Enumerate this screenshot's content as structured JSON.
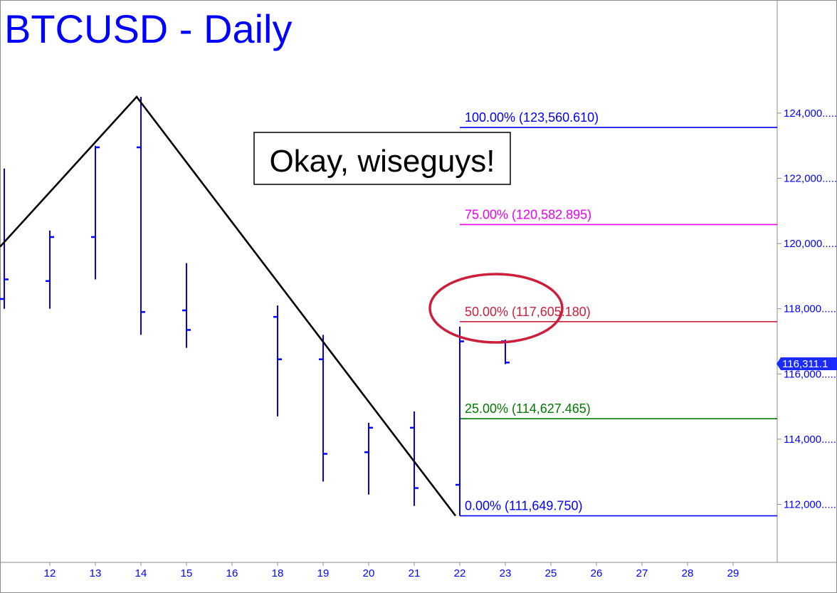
{
  "chart_data": {
    "type": "ohlc",
    "title": "BTCUSD - Daily",
    "colors": {
      "bars": "#0000ff",
      "title": "#0000ff",
      "pattern": "#000000",
      "axis_text": "#0000ff",
      "highlight": "#cc1f3c"
    },
    "x_tick_labels": [
      "12",
      "13",
      "14",
      "15",
      "16",
      "18",
      "19",
      "20",
      "21",
      "22",
      "23",
      "25",
      "26",
      "27",
      "28",
      "29"
    ],
    "y_range": [
      110000,
      126000
    ],
    "y_ticks": [
      112000,
      114000,
      116000,
      118000,
      120000,
      122000,
      124000
    ],
    "y_tick_labels": [
      "112,000.....",
      "114,000.....",
      "116,000.....",
      "118,000.....",
      "120,000.....",
      "122,000.....",
      "124,000....."
    ],
    "bars": [
      {
        "date": "11",
        "open": 118300,
        "high": 122300,
        "low": 118000,
        "close": 118900
      },
      {
        "date": "12",
        "open": 118850,
        "high": 120400,
        "low": 118000,
        "close": 120200
      },
      {
        "date": "13",
        "open": 120200,
        "high": 123000,
        "low": 118900,
        "close": 122950
      },
      {
        "date": "14",
        "open": 122950,
        "high": 124500,
        "low": 117200,
        "close": 117900
      },
      {
        "date": "15",
        "open": 117950,
        "high": 119400,
        "low": 116800,
        "close": 117350
      },
      {
        "date": "18",
        "open": 117750,
        "high": 118100,
        "low": 114700,
        "close": 116450
      },
      {
        "date": "19",
        "open": 116450,
        "high": 117200,
        "low": 112700,
        "close": 113550
      },
      {
        "date": "20",
        "open": 113600,
        "high": 114500,
        "low": 112300,
        "close": 114350
      },
      {
        "date": "21",
        "open": 114350,
        "high": 114850,
        "low": 111950,
        "close": 112500
      },
      {
        "date": "22",
        "open": 112600,
        "high": 117450,
        "low": 111650,
        "close": 117000
      },
      {
        "date": "23",
        "open": 117000,
        "high": 117050,
        "low": 116300,
        "close": 116350
      }
    ],
    "pattern_line": [
      {
        "date": "11",
        "value": 119900
      },
      {
        "date": "14",
        "value": 124500
      },
      {
        "date": "22",
        "value": 111650
      }
    ],
    "last_price_label": "116,311.1",
    "last_price": 116311,
    "fib_levels": [
      {
        "label": "100.00% (123,560.610)",
        "value": 123560.61,
        "color": "#0000ff"
      },
      {
        "label": "75.00% (120,582.895)",
        "value": 120582.895,
        "color": "#ee00ee"
      },
      {
        "label": "50.00% (117,605.180)",
        "value": 117605.18,
        "color": "#cc1f3c"
      },
      {
        "label": "25.00% (114,627.465)",
        "value": 114627.465,
        "color": "#007a00"
      },
      {
        "label": "0.00% (111,649.750)",
        "value": 111649.75,
        "color": "#0000ff"
      }
    ],
    "annotation": "Okay, wiseguys!"
  }
}
